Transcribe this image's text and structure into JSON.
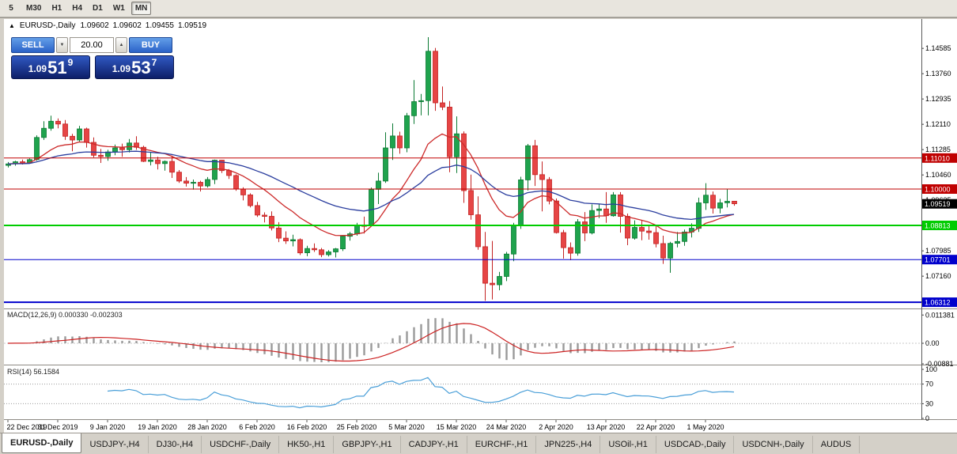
{
  "toolbar": {
    "periods": [
      {
        "label": "5",
        "active": false
      },
      {
        "label": "M30",
        "active": false
      },
      {
        "label": "H1",
        "active": false
      },
      {
        "label": "H4",
        "active": false
      },
      {
        "label": "D1",
        "active": false
      },
      {
        "label": "W1",
        "active": false
      },
      {
        "label": "MN",
        "active": true
      }
    ]
  },
  "chart": {
    "title": "EURUSD-,Daily",
    "ohlc": {
      "open": "1.09602",
      "high": "1.09602",
      "low": "1.09455",
      "close": "1.09519"
    },
    "icons": {
      "marker": "▲",
      "down_arrow": "▼",
      "up_arrow": "▲"
    },
    "trade_panel": {
      "sell_label": "SELL",
      "buy_label": "BUY",
      "lot_size": "20.00",
      "sell_price": {
        "base": "1.09",
        "pips": "51",
        "point": "9"
      },
      "buy_price": {
        "base": "1.09",
        "pips": "53",
        "point": "7"
      }
    }
  },
  "chart_data": {
    "type": "candlestick",
    "symbol": "EURUSD-",
    "timeframe": "Daily",
    "x_labels": [
      "22 Dec 2019",
      "31 Dec 2019",
      "9 Jan 2020",
      "19 Jan 2020",
      "28 Jan 2020",
      "6 Feb 2020",
      "16 Feb 2020",
      "25 Feb 2020",
      "5 Mar 2020",
      "15 Mar 2020",
      "24 Mar 2020",
      "2 Apr 2020",
      "13 Apr 2020",
      "22 Apr 2020",
      "1 May 2020"
    ],
    "label_every": 7,
    "candles": [
      [
        1.1077,
        1.1088,
        1.107,
        1.1082
      ],
      [
        1.1082,
        1.1092,
        1.1076,
        1.1089
      ],
      [
        1.1089,
        1.1096,
        1.108,
        1.1085
      ],
      [
        1.1085,
        1.11,
        1.1083,
        1.1096
      ],
      [
        1.1096,
        1.1175,
        1.1092,
        1.1168
      ],
      [
        1.1168,
        1.1221,
        1.116,
        1.1198
      ],
      [
        1.1198,
        1.1239,
        1.119,
        1.1221
      ],
      [
        1.1221,
        1.123,
        1.1198,
        1.1212
      ],
      [
        1.1212,
        1.1225,
        1.116,
        1.1172
      ],
      [
        1.1172,
        1.118,
        1.1123,
        1.116
      ],
      [
        1.116,
        1.1206,
        1.1155,
        1.1196
      ],
      [
        1.1196,
        1.12,
        1.1135,
        1.1152
      ],
      [
        1.1152,
        1.1168,
        1.1103,
        1.111
      ],
      [
        1.111,
        1.1131,
        1.1085,
        1.1106
      ],
      [
        1.1106,
        1.1128,
        1.1092,
        1.1121
      ],
      [
        1.1121,
        1.1145,
        1.111,
        1.1134
      ],
      [
        1.1134,
        1.1148,
        1.1105,
        1.1128
      ],
      [
        1.1128,
        1.1163,
        1.1119,
        1.115
      ],
      [
        1.115,
        1.1172,
        1.1128,
        1.1136
      ],
      [
        1.1136,
        1.1141,
        1.1088,
        1.109
      ],
      [
        1.109,
        1.1119,
        1.1077,
        1.1095
      ],
      [
        1.1095,
        1.1105,
        1.1064,
        1.1083
      ],
      [
        1.1083,
        1.1093,
        1.106,
        1.109
      ],
      [
        1.109,
        1.1109,
        1.1036,
        1.1055
      ],
      [
        1.1055,
        1.1062,
        1.102,
        1.1026
      ],
      [
        1.1026,
        1.1039,
        1.1008,
        1.1019
      ],
      [
        1.1019,
        1.1031,
        1.0998,
        1.1022
      ],
      [
        1.1022,
        1.1027,
        1.0992,
        1.101
      ],
      [
        1.101,
        1.1039,
        1.1005,
        1.1031
      ],
      [
        1.1031,
        1.1096,
        1.1016,
        1.1094
      ],
      [
        1.1094,
        1.1095,
        1.1052,
        1.106
      ],
      [
        1.106,
        1.1065,
        1.1033,
        1.1044
      ],
      [
        1.1044,
        1.1048,
        1.0994,
        1.1
      ],
      [
        1.1,
        1.1006,
        1.0963,
        1.0981
      ],
      [
        1.0981,
        1.0986,
        1.094,
        1.0946
      ],
      [
        1.0946,
        1.0958,
        1.0909,
        1.0915
      ],
      [
        1.0915,
        1.0924,
        1.0891,
        1.0911
      ],
      [
        1.0911,
        1.0927,
        1.0865,
        1.0873
      ],
      [
        1.0873,
        1.0892,
        1.0827,
        1.084
      ],
      [
        1.084,
        1.0862,
        1.0821,
        1.0831
      ],
      [
        1.0831,
        1.0851,
        1.0813,
        1.0835
      ],
      [
        1.0835,
        1.0839,
        1.0785,
        1.0792
      ],
      [
        1.0792,
        1.0815,
        1.0781,
        1.0806
      ],
      [
        1.0806,
        1.0823,
        1.0795,
        1.0802
      ],
      [
        1.0802,
        1.0808,
        1.0778,
        1.0786
      ],
      [
        1.0786,
        1.0801,
        1.078,
        1.0795
      ],
      [
        1.0795,
        1.0808,
        1.0777,
        1.0805
      ],
      [
        1.0805,
        1.085,
        1.0798,
        1.0846
      ],
      [
        1.0846,
        1.086,
        1.0832,
        1.0854
      ],
      [
        1.0854,
        1.089,
        1.0848,
        1.0881
      ],
      [
        1.0881,
        1.091,
        1.0855,
        1.088
      ],
      [
        1.088,
        1.1005,
        1.0878,
        1.0999
      ],
      [
        1.0999,
        1.1053,
        1.0951,
        1.1026
      ],
      [
        1.1026,
        1.1185,
        1.102,
        1.1134
      ],
      [
        1.1134,
        1.1214,
        1.1095,
        1.1173
      ],
      [
        1.1173,
        1.1187,
        1.1115,
        1.1134
      ],
      [
        1.1134,
        1.1248,
        1.112,
        1.1239
      ],
      [
        1.1239,
        1.1355,
        1.1212,
        1.1285
      ],
      [
        1.1285,
        1.131,
        1.124,
        1.1288
      ],
      [
        1.1288,
        1.1495,
        1.124,
        1.1449
      ],
      [
        1.1449,
        1.146,
        1.1255,
        1.1281
      ],
      [
        1.1281,
        1.1334,
        1.1257,
        1.1267
      ],
      [
        1.1267,
        1.1287,
        1.1055,
        1.1105
      ],
      [
        1.1105,
        1.1237,
        1.1052,
        1.118
      ],
      [
        1.118,
        1.1188,
        1.0955,
        1.0995
      ],
      [
        1.0995,
        1.1047,
        1.09,
        1.0916
      ],
      [
        1.0916,
        1.0976,
        1.0802,
        1.0812
      ],
      [
        1.0812,
        1.086,
        1.0636,
        1.0693
      ],
      [
        1.0693,
        1.0831,
        1.064,
        1.0688
      ],
      [
        1.0688,
        1.073,
        1.067,
        1.0715
      ],
      [
        1.0715,
        1.0795,
        1.07,
        1.0788
      ],
      [
        1.0788,
        1.089,
        1.0765,
        1.088
      ],
      [
        1.088,
        1.104,
        1.087,
        1.103
      ],
      [
        1.103,
        1.1147,
        1.0995,
        1.1141
      ],
      [
        1.1141,
        1.116,
        1.101,
        1.1047
      ],
      [
        1.1047,
        1.109,
        1.0927,
        1.1031
      ],
      [
        1.1031,
        1.1039,
        1.095,
        1.0961
      ],
      [
        1.0961,
        1.0969,
        1.0855,
        1.0858
      ],
      [
        1.0858,
        1.0867,
        1.0773,
        1.0809
      ],
      [
        1.0809,
        1.0826,
        1.0768,
        1.0791
      ],
      [
        1.0791,
        1.0902,
        1.0783,
        1.0893
      ],
      [
        1.0893,
        1.0925,
        1.083,
        1.0857
      ],
      [
        1.0857,
        1.095,
        1.0852,
        1.093
      ],
      [
        1.093,
        1.095,
        1.0905,
        1.0935
      ],
      [
        1.0935,
        1.099,
        1.089,
        1.0913
      ],
      [
        1.0913,
        1.099,
        1.091,
        1.0981
      ],
      [
        1.0981,
        1.099,
        1.0858,
        1.0911
      ],
      [
        1.0911,
        1.092,
        1.0817,
        1.084
      ],
      [
        1.084,
        1.0898,
        1.0835,
        1.0875
      ],
      [
        1.0875,
        1.0897,
        1.0833,
        1.0863
      ],
      [
        1.0863,
        1.088,
        1.0835,
        1.0858
      ],
      [
        1.0858,
        1.088,
        1.081,
        1.0822
      ],
      [
        1.0822,
        1.0848,
        1.0756,
        1.0775
      ],
      [
        1.0775,
        1.0828,
        1.0727,
        1.0823
      ],
      [
        1.0823,
        1.086,
        1.081,
        1.0829
      ],
      [
        1.0829,
        1.0868,
        1.0815,
        1.086
      ],
      [
        1.086,
        1.0888,
        1.0842,
        1.0872
      ],
      [
        1.0872,
        1.0972,
        1.086,
        1.0955
      ],
      [
        1.0955,
        1.1019,
        1.0932,
        1.098
      ],
      [
        1.098,
        1.0992,
        1.092,
        1.0938
      ],
      [
        1.0938,
        1.0968,
        1.0921,
        1.0955
      ],
      [
        1.0955,
        1.0999,
        1.094,
        1.096
      ],
      [
        1.09602,
        1.09602,
        1.09455,
        1.09519
      ]
    ],
    "y_axis_labels": [
      "1.14585",
      "1.13760",
      "1.12935",
      "1.12110",
      "1.11285",
      "1.10460",
      "1.09635",
      "1.08810",
      "1.07985",
      "1.07160",
      "1.06335"
    ],
    "hlines": [
      {
        "value": 1.1101,
        "label": "1.11010",
        "color": "#c00000",
        "width": 1
      },
      {
        "value": 1.1,
        "label": "1.10000",
        "color": "#c00000",
        "width": 1
      },
      {
        "value": 1.08813,
        "label": "1.08813",
        "color": "#00cc00",
        "width": 2
      },
      {
        "value": 1.07701,
        "label": "1.07701",
        "color": "#0000cc",
        "width": 1
      },
      {
        "value": 1.06312,
        "label": "1.06312",
        "color": "#0000cc",
        "width": 2
      }
    ],
    "current_price": {
      "value": 1.09519,
      "label": "1.09519",
      "color": "#000000"
    },
    "moving_averages": [
      {
        "period": 13,
        "color": "#cc2929"
      },
      {
        "period": 34,
        "color": "#2a3d9e"
      }
    ],
    "macd": {
      "label": "MACD(12,26,9)",
      "fast": 12,
      "slow": 26,
      "signal_period": 9,
      "main_value": "0.000330",
      "signal_value": "-0.002303",
      "axis_labels": [
        "0.011381",
        "0.00",
        "-0.00881"
      ],
      "bar_color": "#9a9a9a",
      "signal_color": "#cc2222"
    },
    "rsi": {
      "label": "RSI(14)",
      "period": 14,
      "value": "56.1584",
      "axis_labels": [
        100,
        70,
        30,
        0
      ],
      "levels": [
        70,
        30
      ],
      "color": "#4a9fd8"
    },
    "colors": {
      "up": "#1fa34d",
      "up_border": "#0b7a33",
      "down": "#e64545",
      "down_border": "#c32222",
      "axis_text": "#000000"
    }
  },
  "tabs": [
    {
      "label": "EURUSD-,Daily",
      "active": true
    },
    {
      "label": "USDJPY-,H4",
      "active": false
    },
    {
      "label": "DJ30-,H4",
      "active": false
    },
    {
      "label": "USDCHF-,Daily",
      "active": false
    },
    {
      "label": "HK50-,H1",
      "active": false
    },
    {
      "label": "GBPJPY-,H1",
      "active": false
    },
    {
      "label": "CADJPY-,H1",
      "active": false
    },
    {
      "label": "EURCHF-,H1",
      "active": false
    },
    {
      "label": "JPN225-,H4",
      "active": false
    },
    {
      "label": "USOil-,H1",
      "active": false
    },
    {
      "label": "USDCAD-,Daily",
      "active": false
    },
    {
      "label": "USDCNH-,Daily",
      "active": false
    },
    {
      "label": "AUDUS",
      "active": false
    }
  ]
}
